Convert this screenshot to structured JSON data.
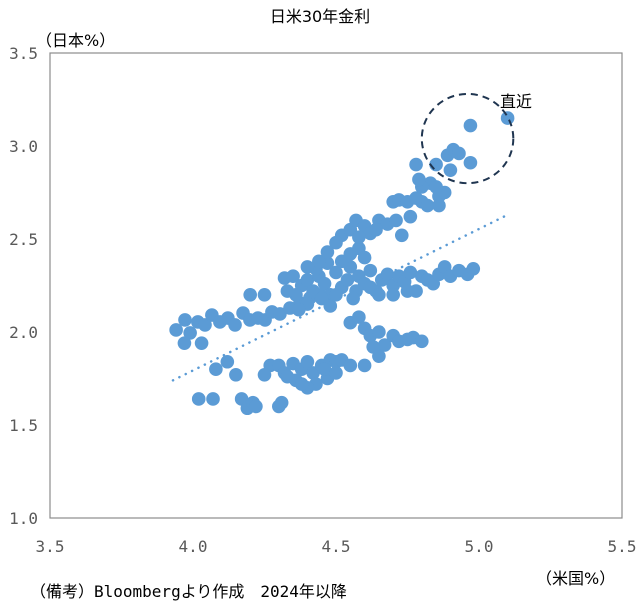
{
  "chart_data": {
    "type": "scatter",
    "title": "日米30年金利",
    "xlabel": "（米国%）",
    "ylabel": "（日本%）",
    "xlim": [
      3.5,
      5.5
    ],
    "ylim": [
      1.0,
      3.5
    ],
    "x_ticks": [
      "3.5",
      "4.0",
      "4.5",
      "5.0",
      "5.5"
    ],
    "y_ticks": [
      "3.5",
      "3.0",
      "2.5",
      "2.0",
      "1.5",
      "1.0"
    ],
    "grid": false,
    "point_color": "#5b9bd5",
    "annotation": {
      "label": "直近",
      "center": [
        4.96,
        3.04
      ],
      "radius_x": 0.16,
      "radius_y": 0.24
    },
    "trendline": {
      "style": "dotted",
      "from": [
        3.93,
        1.74
      ],
      "to": [
        5.1,
        2.63
      ]
    },
    "points": [
      [
        3.941,
        2.011
      ],
      [
        3.972,
        2.065
      ],
      [
        3.99,
        1.995
      ],
      [
        4.017,
        2.054
      ],
      [
        4.042,
        2.038
      ],
      [
        4.066,
        2.091
      ],
      [
        4.094,
        2.054
      ],
      [
        4.122,
        2.075
      ],
      [
        4.147,
        2.038
      ],
      [
        4.175,
        2.102
      ],
      [
        4.199,
        2.065
      ],
      [
        4.227,
        2.075
      ],
      [
        4.252,
        2.065
      ],
      [
        4.276,
        2.108
      ],
      [
        4.304,
        2.097
      ],
      [
        4.339,
        2.129
      ],
      [
        4.374,
        2.156
      ],
      [
        4.409,
        2.183
      ],
      [
        4.444,
        2.199
      ],
      [
        4.32,
        2.29
      ],
      [
        4.35,
        2.3
      ],
      [
        4.38,
        2.25
      ],
      [
        4.4,
        2.28
      ],
      [
        4.42,
        2.22
      ],
      [
        4.44,
        2.3
      ],
      [
        4.46,
        2.26
      ],
      [
        4.48,
        2.2
      ],
      [
        4.5,
        2.32
      ],
      [
        4.52,
        2.24
      ],
      [
        4.54,
        2.28
      ],
      [
        4.55,
        2.35
      ],
      [
        4.57,
        2.22
      ],
      [
        4.58,
        2.3
      ],
      [
        4.6,
        2.26
      ],
      [
        4.62,
        2.33
      ],
      [
        4.64,
        2.22
      ],
      [
        4.66,
        2.28
      ],
      [
        4.68,
        2.31
      ],
      [
        4.7,
        2.25
      ],
      [
        4.72,
        2.3
      ],
      [
        4.74,
        2.27
      ],
      [
        4.76,
        2.32
      ],
      [
        4.78,
        2.22
      ],
      [
        4.8,
        2.3
      ],
      [
        4.82,
        2.28
      ],
      [
        4.84,
        2.26
      ],
      [
        4.86,
        2.31
      ],
      [
        4.88,
        2.35
      ],
      [
        4.9,
        2.3
      ],
      [
        4.93,
        2.33
      ],
      [
        4.96,
        2.31
      ],
      [
        4.98,
        2.34
      ],
      [
        4.45,
        2.18
      ],
      [
        4.48,
        2.14
      ],
      [
        4.36,
        2.2
      ],
      [
        4.4,
        2.15
      ],
      [
        4.52,
        2.38
      ],
      [
        4.55,
        2.42
      ],
      [
        4.58,
        2.45
      ],
      [
        4.6,
        2.4
      ],
      [
        4.47,
        2.37
      ],
      [
        4.43,
        2.34
      ],
      [
        4.5,
        2.2
      ],
      [
        4.56,
        2.18
      ],
      [
        4.62,
        2.24
      ],
      [
        4.7,
        2.2
      ],
      [
        4.75,
        2.22
      ],
      [
        4.65,
        2.2
      ],
      [
        4.33,
        2.22
      ],
      [
        4.37,
        2.12
      ],
      [
        4.2,
        2.2
      ],
      [
        4.25,
        2.2
      ],
      [
        4.55,
        2.05
      ],
      [
        4.58,
        2.08
      ],
      [
        4.6,
        2.02
      ],
      [
        4.62,
        1.98
      ],
      [
        4.65,
        2.0
      ],
      [
        4.67,
        1.93
      ],
      [
        4.7,
        1.98
      ],
      [
        4.72,
        1.95
      ],
      [
        4.75,
        1.96
      ],
      [
        4.77,
        1.97
      ],
      [
        4.8,
        1.95
      ],
      [
        4.65,
        1.87
      ],
      [
        4.63,
        1.92
      ],
      [
        3.97,
        1.94
      ],
      [
        4.03,
        1.94
      ],
      [
        4.27,
        1.82
      ],
      [
        4.25,
        1.77
      ],
      [
        4.3,
        1.82
      ],
      [
        4.32,
        1.78
      ],
      [
        4.35,
        1.83
      ],
      [
        4.38,
        1.8
      ],
      [
        4.4,
        1.84
      ],
      [
        4.42,
        1.78
      ],
      [
        4.45,
        1.82
      ],
      [
        4.48,
        1.85
      ],
      [
        4.5,
        1.84
      ],
      [
        4.52,
        1.85
      ],
      [
        4.47,
        1.75
      ],
      [
        4.43,
        1.72
      ],
      [
        4.4,
        1.7
      ],
      [
        4.36,
        1.74
      ],
      [
        4.33,
        1.76
      ],
      [
        4.55,
        1.82
      ],
      [
        4.6,
        1.82
      ],
      [
        4.46,
        1.8
      ],
      [
        4.5,
        1.78
      ],
      [
        4.38,
        1.72
      ],
      [
        4.08,
        1.8
      ],
      [
        4.12,
        1.84
      ],
      [
        4.15,
        1.77
      ],
      [
        4.02,
        1.64
      ],
      [
        4.07,
        1.64
      ],
      [
        4.17,
        1.64
      ],
      [
        4.19,
        1.59
      ],
      [
        4.21,
        1.62
      ],
      [
        4.22,
        1.6
      ],
      [
        4.3,
        1.6
      ],
      [
        4.31,
        1.62
      ],
      [
        4.52,
        2.52
      ],
      [
        4.55,
        2.55
      ],
      [
        4.57,
        2.6
      ],
      [
        4.6,
        2.57
      ],
      [
        4.62,
        2.53
      ],
      [
        4.65,
        2.6
      ],
      [
        4.68,
        2.58
      ],
      [
        4.7,
        2.7
      ],
      [
        4.72,
        2.71
      ],
      [
        4.75,
        2.7
      ],
      [
        4.78,
        2.72
      ],
      [
        4.8,
        2.7
      ],
      [
        4.76,
        2.62
      ],
      [
        4.71,
        2.6
      ],
      [
        4.73,
        2.52
      ],
      [
        4.82,
        2.68
      ],
      [
        4.86,
        2.73
      ],
      [
        4.88,
        2.75
      ],
      [
        4.83,
        2.8
      ],
      [
        4.8,
        2.78
      ],
      [
        4.78,
        2.9
      ],
      [
        4.85,
        2.9
      ],
      [
        4.86,
        2.68
      ],
      [
        4.58,
        2.51
      ],
      [
        4.5,
        2.48
      ],
      [
        4.44,
        2.38
      ],
      [
        4.4,
        2.35
      ],
      [
        4.47,
        2.43
      ],
      [
        4.64,
        2.55
      ],
      [
        4.79,
        2.82
      ],
      [
        4.85,
        2.78
      ],
      [
        4.89,
        2.95
      ],
      [
        4.91,
        2.98
      ],
      [
        4.93,
        2.96
      ],
      [
        4.97,
        2.91
      ],
      [
        4.97,
        3.11
      ],
      [
        4.9,
        2.87
      ],
      [
        5.1,
        3.15
      ]
    ]
  },
  "footnote": "（備考）Bloombergより作成　2024年以降"
}
